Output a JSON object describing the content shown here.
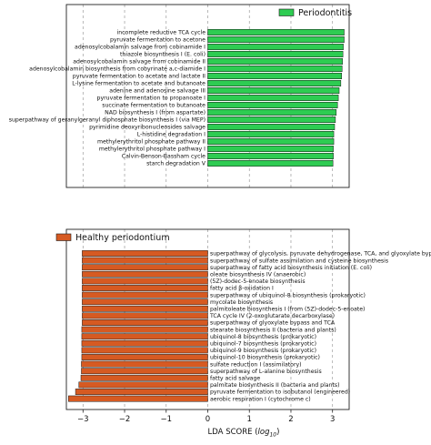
{
  "chart_data": {
    "type": "bar",
    "orientation": "horizontal",
    "xlabel_prefix": "LDA SCORE (",
    "xlabel_log": "log",
    "xlabel_sub": "10",
    "xlabel_suffix": ")",
    "xlim": [
      -3.4,
      3.4
    ],
    "xticks": [
      -3,
      -2,
      -1,
      0,
      1,
      2,
      3
    ],
    "xtick_labels": [
      "−3",
      "−2",
      "−1",
      "0",
      "1",
      "2",
      "3"
    ],
    "grid": "vertical dashed",
    "series": [
      {
        "name": "Periodontitis",
        "color": "#2ecc52",
        "legend_position": "top-right",
        "categories": [
          "incomplete reductive TCA cycle",
          "pyruvate fermentation to acetone",
          "adenosylcobalamin salvage from cobinamide I",
          "thiazole biosynthesis I (E. coli)",
          "adenosylcobalamin salvage from cobinamide II",
          "adenosylcobalamin biosynthesis from cobyrinate a,c-diamide I",
          "pyruvate fermentation to acetate and lactate II",
          "L-lysine fermentation to acetate and butanoate",
          "adenine and adenosine salvage III",
          "pyruvate fermentation to propanoate I",
          "succinate fermentation to butanoate",
          "NAD biosynthesis I (from aspartate)",
          "superpathway of geranylgeranyl diphosphate biosynthesis I (via MEP)",
          "pyrimidine deoxyribonucleosides salvage",
          "L-histidine degradation I",
          "methylerythritol phosphate pathway II",
          "methylerythritol phosphate pathway I",
          "Calvin-Benson-Bassham cycle",
          "starch degradation V"
        ],
        "values": [
          3.28,
          3.28,
          3.26,
          3.25,
          3.24,
          3.23,
          3.22,
          3.2,
          3.16,
          3.14,
          3.12,
          3.09,
          3.07,
          3.05,
          3.03,
          3.03,
          3.02,
          3.02,
          3.01
        ]
      },
      {
        "name": "Healthy periodontium",
        "color": "#d65a22",
        "legend_position": "top-left",
        "categories": [
          "superpathway of glycolysis, pyruvate dehydrogenase, TCA, and glyoxylate bypass",
          "superpathway of sulfate assimilation and cysteine biosynthesis",
          "superpathway of fatty acid biosynthesis initiation (E. coli)",
          "oleate biosynthesis IV (anaerobic)",
          "(5Z)-dodec-5-enoate biosynthesis",
          "fatty acid &beta;-oxidation I",
          "superpathway of ubiquinol-8 biosynthesis (prokaryotic)",
          "mycolate biosynthesis",
          "palmitoleate biosynthesis I (from (5Z)-dodec-5-enoate)",
          "TCA cycle IV (2-oxoglutarate decarboxylase)",
          "superpathway of glyoxylate bypass and TCA",
          "stearate biosynthesis II (bacteria and plants)",
          "ubiquinol-8 biosynthesis (prokaryotic)",
          "ubiquinol-7 biosynthesis (prokaryotic)",
          "ubiquinol-9 biosynthesis (prokaryotic)",
          "ubiquinol-10 biosynthesis (prokaryotic)",
          "sulfate reduction I (assimilatory)",
          "superpathway of L-alanine biosynthesis",
          "fatty acid salvage",
          "palmitate biosynthesis II (bacteria and plants)",
          "pyruvate fermentation to isobutanol (engineered)",
          "aerobic respiration I (cytochrome c)"
        ],
        "values": [
          -3.02,
          -3.02,
          -3.02,
          -3.02,
          -3.02,
          -3.02,
          -3.02,
          -3.02,
          -3.02,
          -3.02,
          -3.02,
          -3.03,
          -3.03,
          -3.03,
          -3.03,
          -3.03,
          -3.04,
          -3.04,
          -3.05,
          -3.1,
          -3.18,
          -3.35
        ]
      }
    ]
  }
}
